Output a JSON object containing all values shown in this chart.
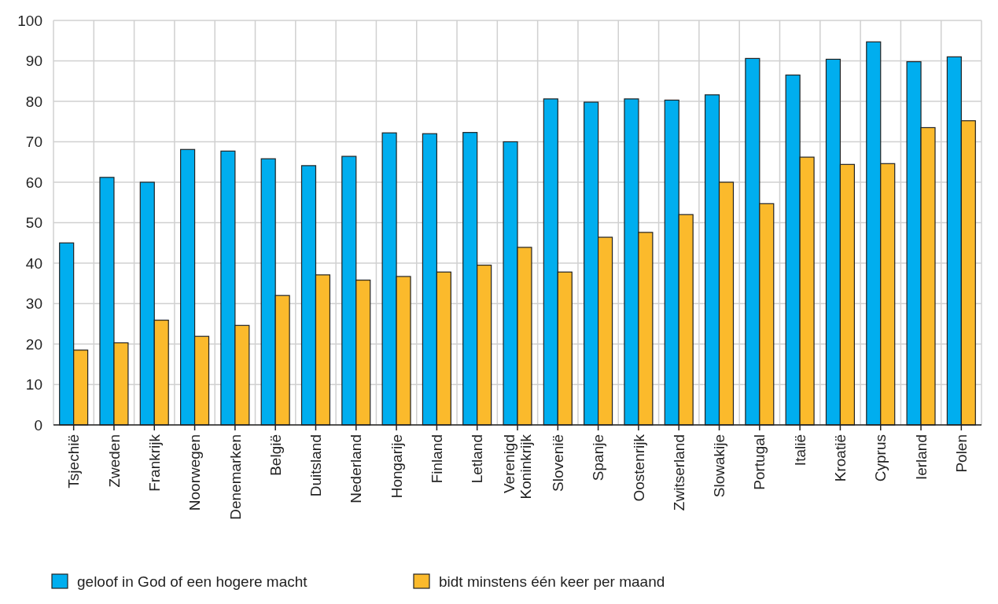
{
  "chart_data": {
    "type": "bar",
    "categories": [
      "Tsjechië",
      "Zweden",
      "Frankrijk",
      "Noorwegen",
      "Denemarken",
      "België",
      "Duitsland",
      "Nederland",
      "Hongarije",
      "Finland",
      "Letland",
      "Verenigd Koninkrijk",
      "Slovenië",
      "Spanje",
      "Oostenrijk",
      "Zwitserland",
      "Slowakije",
      "Portugal",
      "Italië",
      "Kroatië",
      "Cyprus",
      "Ierland",
      "Polen"
    ],
    "series": [
      {
        "name": "geloof in God of een hogere macht",
        "color": "#00aeef",
        "values": [
          45,
          61.2,
          60,
          68.1,
          67.7,
          65.8,
          64.1,
          66.4,
          72.2,
          72,
          72.3,
          70,
          80.6,
          79.8,
          80.6,
          80.3,
          81.6,
          90.6,
          86.5,
          90.4,
          94.7,
          89.8,
          91
        ]
      },
      {
        "name": "bidt minstens één keer per maand",
        "color": "#fbba2c",
        "values": [
          18.5,
          20.3,
          25.9,
          21.9,
          24.6,
          32,
          37.1,
          35.8,
          36.7,
          37.8,
          39.5,
          43.9,
          37.8,
          46.4,
          47.6,
          52,
          60,
          54.7,
          66.2,
          64.4,
          64.6,
          73.5,
          75.2
        ]
      }
    ],
    "ylim": [
      0,
      100
    ],
    "yticks": [
      0,
      10,
      20,
      30,
      40,
      50,
      60,
      70,
      80,
      90,
      100
    ],
    "grid": true,
    "legend": "bottom left"
  }
}
